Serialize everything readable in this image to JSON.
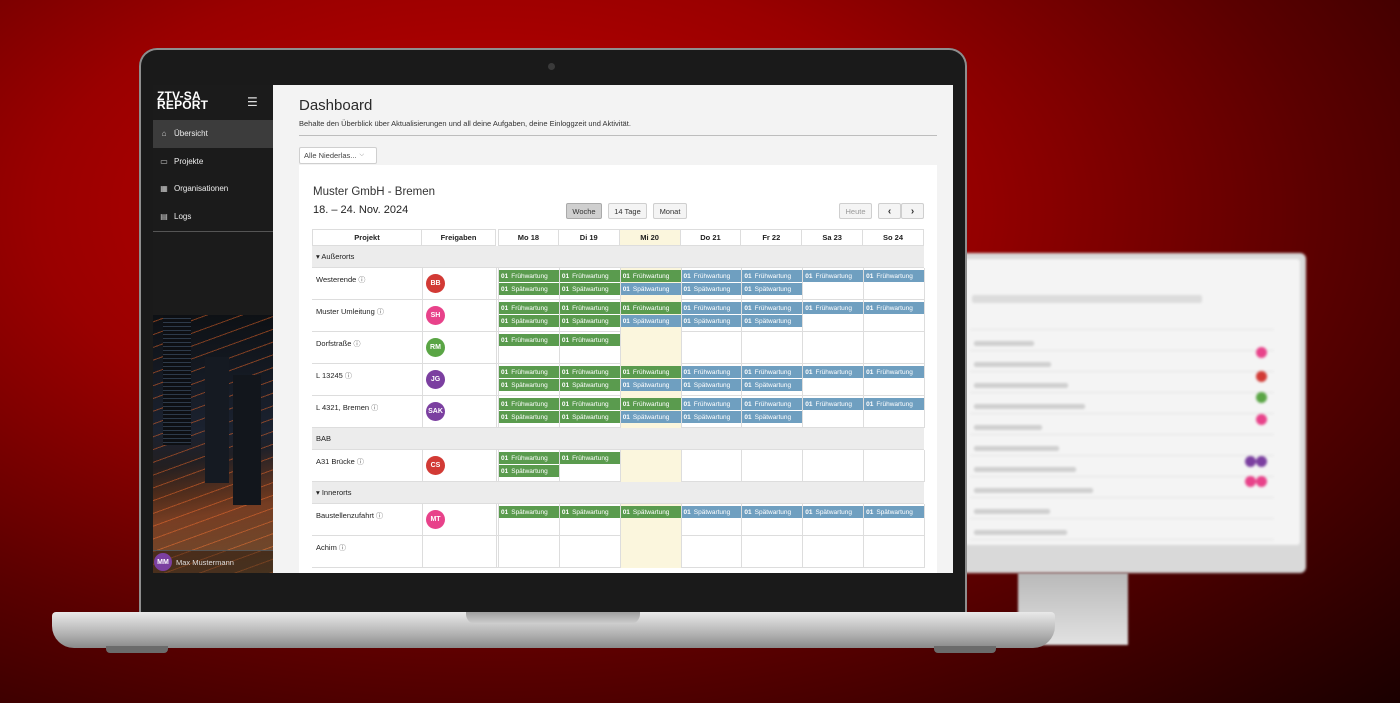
{
  "app": {
    "logo_line1": "ZTV-SA",
    "logo_line2": "REPORT",
    "menu_icon": "hamburger-icon"
  },
  "sidebar": {
    "items": [
      {
        "label": "Übersicht",
        "icon": "home-icon",
        "active": true
      },
      {
        "label": "Projekte",
        "icon": "folder-icon",
        "active": false
      },
      {
        "label": "Organisationen",
        "icon": "organization-icon",
        "active": false
      },
      {
        "label": "Logs",
        "icon": "logs-icon",
        "active": false
      }
    ],
    "user": {
      "initials": "MM",
      "name": "Max Mustermann"
    }
  },
  "page": {
    "title": "Dashboard",
    "subtitle": "Behalte den Überblick über Aktualisierungen und all deine Aufgaben, deine Einloggzeit und Aktivität.",
    "filter_value": "Alle Niederlas..."
  },
  "calendar": {
    "company": "Muster GmbH - Bremen",
    "range": "18. – 24. Nov. 2024",
    "views": [
      "Woche",
      "14 Tage",
      "Monat"
    ],
    "active_view": "Woche",
    "today_button": "Heute",
    "prev_icon": "chevron-left-icon",
    "next_icon": "chevron-right-icon",
    "col_project": "Projekt",
    "col_approvals": "Freigaben",
    "days": [
      "Mo 18",
      "Di 19",
      "Mi 20",
      "Do 21",
      "Fr 22",
      "Sa 23",
      "So 24"
    ],
    "today_index": 2,
    "groups": [
      {
        "name": "Außerorts",
        "rows": [
          {
            "project": "Westerende",
            "badge": "BB",
            "badge_color": "#d23a35",
            "events": {
              "early": [
                1,
                1,
                1,
                1,
                1,
                1,
                1
              ],
              "late": [
                1,
                1,
                1,
                1,
                1,
                0,
                0
              ]
            }
          },
          {
            "project": "Muster Umleitung",
            "badge": "SH",
            "badge_color": "#e8428a",
            "events": {
              "early": [
                1,
                1,
                1,
                1,
                1,
                1,
                1
              ],
              "late": [
                1,
                1,
                1,
                1,
                1,
                0,
                0
              ]
            }
          },
          {
            "project": "Dorfstraße",
            "badge": "RM",
            "badge_color": "#5aa545",
            "events": {
              "early": [
                1,
                1,
                0,
                0,
                0,
                0,
                0
              ],
              "late": [
                0,
                0,
                0,
                0,
                0,
                0,
                0
              ]
            }
          },
          {
            "project": "L 13245",
            "badge": "JG",
            "badge_color": "#7b3fa0",
            "events": {
              "early": [
                1,
                1,
                1,
                1,
                1,
                1,
                1
              ],
              "late": [
                1,
                1,
                1,
                1,
                1,
                0,
                0
              ]
            }
          },
          {
            "project": "L 4321, Bremen",
            "badge": "SAK",
            "badge_color": "#7b3fa0",
            "events": {
              "early": [
                1,
                1,
                1,
                1,
                1,
                1,
                1
              ],
              "late": [
                1,
                1,
                1,
                1,
                1,
                0,
                0
              ]
            }
          }
        ]
      },
      {
        "name": "BAB",
        "rows": [
          {
            "project": "A31 Brücke",
            "badge": "CS",
            "badge_color": "#d23a35",
            "events": {
              "early": [
                1,
                1,
                0,
                0,
                0,
                0,
                0
              ],
              "late": [
                1,
                0,
                0,
                0,
                0,
                0,
                0
              ]
            }
          }
        ]
      },
      {
        "name": "Innerorts",
        "rows": [
          {
            "project": "Baustellenzufahrt",
            "badge": "MT",
            "badge_color": "#e8428a",
            "events": {
              "early": [
                0,
                0,
                0,
                0,
                0,
                0,
                0
              ],
              "late": [
                1,
                1,
                1,
                1,
                1,
                1,
                1
              ]
            }
          },
          {
            "project": "Achim",
            "badge": "",
            "badge_color": "",
            "events": {
              "early": [
                0,
                0,
                0,
                0,
                0,
                0,
                0
              ],
              "late": [
                0,
                0,
                0,
                0,
                0,
                0,
                0
              ]
            }
          }
        ]
      }
    ],
    "event_num": "01",
    "event_early": "Frühwartung",
    "event_late": "Spätwartung",
    "colors": {
      "early_green": "#5a9b4e",
      "early_blue": "#6f9fc0",
      "today_bg": "#fbf6dd"
    }
  }
}
